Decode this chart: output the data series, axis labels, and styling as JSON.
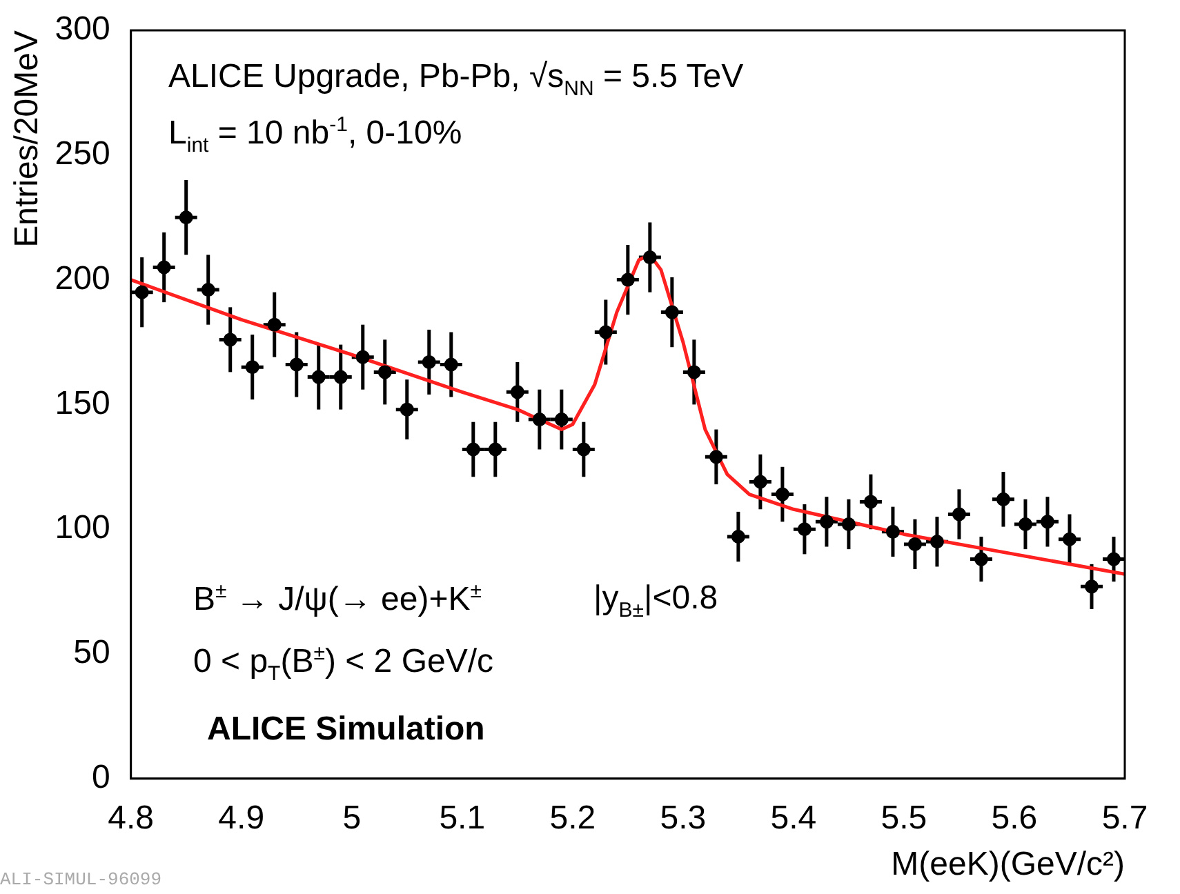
{
  "chart_data": {
    "type": "scatter",
    "xlabel": "M(eeK)(GeV/c²)",
    "ylabel": "Entries/20MeV",
    "xlim": [
      4.8,
      5.7
    ],
    "xticks": [
      4.8,
      4.9,
      {
        "value": 5,
        "label": "5"
      },
      5.1,
      5.2,
      5.3,
      5.4,
      5.5,
      5.6,
      5.7
    ],
    "ylim": [
      0,
      300
    ],
    "yticks": [
      0,
      50,
      100,
      150,
      200,
      250,
      300
    ],
    "annotations": [
      "ALICE Upgrade, Pb-Pb, √s$_{NN}$ = 5.5 TeV",
      "L$_{int}$ = 10 nb$^{-1}$, 0-10%",
      "B$^{±}$ → J/ψ(→ ee)+K$^{±}$",
      "|y$_{B±}$|<0.8",
      "0 < p$_{T}$(B$^{±}$) < 2 GeV/c",
      "ALICE Simulation",
      "ALI-SIMUL-96099"
    ],
    "series": [
      {
        "marker": "circle",
        "color": "#000000",
        "x": [
          4.81,
          4.83,
          4.85,
          4.87,
          4.89,
          4.91,
          4.93,
          4.95,
          4.97,
          4.99,
          5.01,
          5.03,
          5.05,
          5.07,
          5.09,
          5.11,
          5.13,
          5.15,
          5.17,
          5.19,
          5.21,
          5.23,
          5.25,
          5.27,
          5.29,
          5.31,
          5.33,
          5.35,
          5.37,
          5.39,
          5.41,
          5.43,
          5.45,
          5.47,
          5.49,
          5.51,
          5.53,
          5.55,
          5.57,
          5.59,
          5.61,
          5.63,
          5.65,
          5.67,
          5.69
        ],
        "values": [
          195,
          205,
          225,
          196,
          176,
          165,
          182,
          166,
          161,
          161,
          169,
          163,
          148,
          167,
          166,
          132,
          132,
          155,
          144,
          144,
          132,
          179,
          200,
          209,
          187,
          163,
          129,
          97,
          119,
          114,
          100,
          103,
          102,
          111,
          99,
          94,
          95,
          106,
          88,
          112,
          102,
          103,
          96,
          77,
          88
        ],
        "errors": [
          14,
          14,
          15,
          14,
          13,
          13,
          13,
          13,
          13,
          13,
          13,
          13,
          12,
          13,
          13,
          11,
          11,
          12,
          12,
          12,
          11,
          13,
          14,
          14,
          14,
          13,
          11,
          10,
          11,
          11,
          10,
          10,
          10,
          11,
          10,
          10,
          10,
          10,
          9,
          11,
          10,
          10,
          10,
          9,
          9
        ],
        "xerrors": [
          0.01,
          0.01,
          0.01,
          0.01,
          0.01,
          0.01,
          0.01,
          0.01,
          0.01,
          0.01,
          0.01,
          0.01,
          0.01,
          0.01,
          0.01,
          0.01,
          0.01,
          0.01,
          0.01,
          0.01,
          0.01,
          0.01,
          0.01,
          0.01,
          0.01,
          0.01,
          0.01,
          0.01,
          0.01,
          0.01,
          0.01,
          0.01,
          0.01,
          0.01,
          0.01,
          0.01,
          0.01,
          0.01,
          0.01,
          0.01,
          0.01,
          0.01,
          0.01,
          0.01,
          0.01
        ]
      },
      {
        "type": "line",
        "color": "#ff2020",
        "x": [
          4.8,
          4.9,
          5.0,
          5.1,
          5.15,
          5.19,
          5.2,
          5.22,
          5.24,
          5.26,
          5.27,
          5.28,
          5.3,
          5.32,
          5.34,
          5.36,
          5.4,
          5.5,
          5.6,
          5.7
        ],
        "values": [
          200,
          184,
          170,
          155,
          148,
          140,
          142,
          158,
          187,
          208,
          210,
          204,
          175,
          140,
          122,
          114,
          108,
          98,
          90,
          82
        ]
      }
    ]
  }
}
